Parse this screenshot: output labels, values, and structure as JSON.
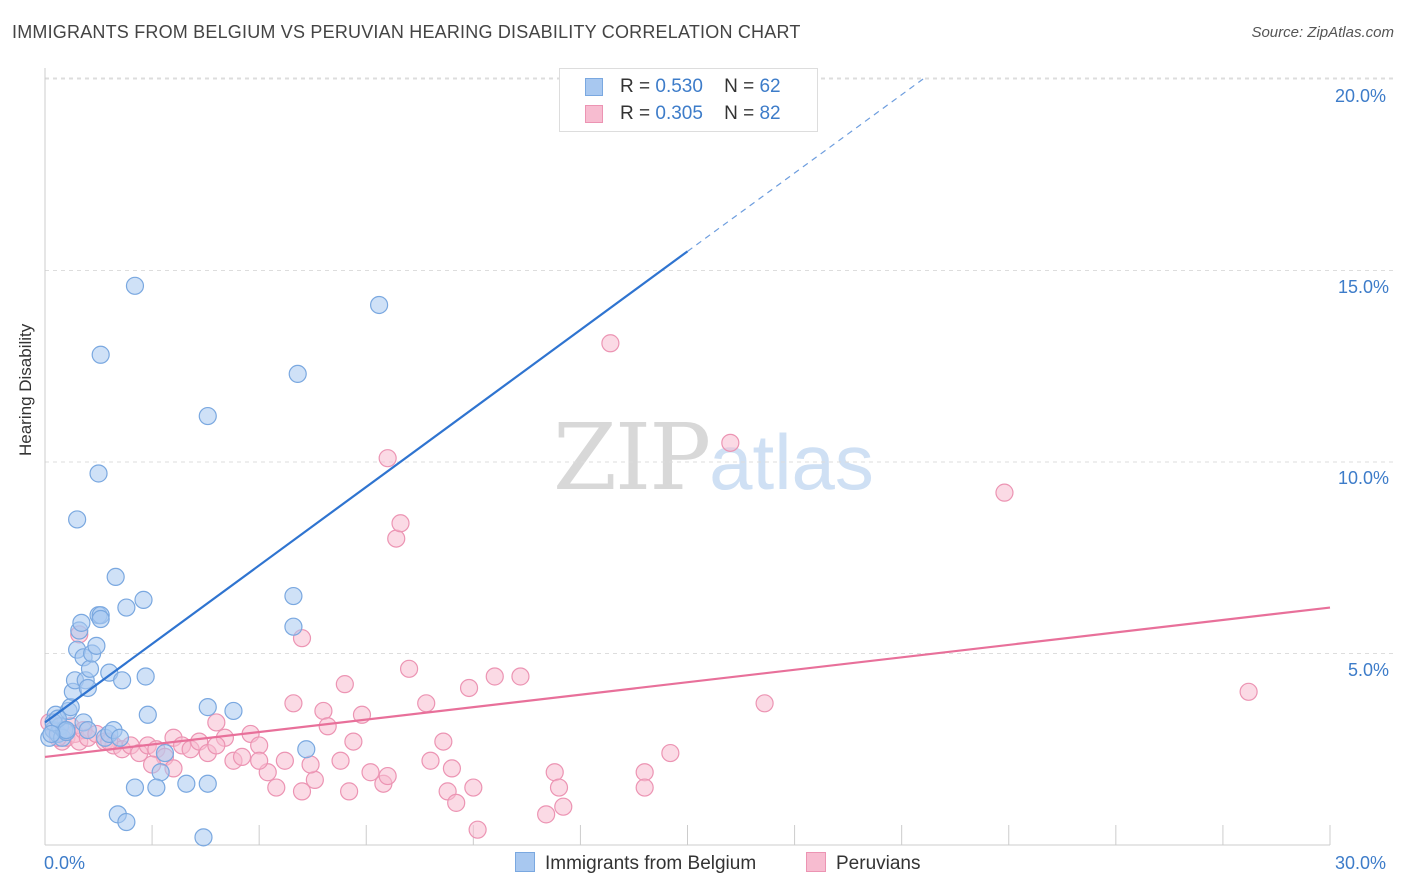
{
  "title": "IMMIGRANTS FROM BELGIUM VS PERUVIAN HEARING DISABILITY CORRELATION CHART",
  "source": "Source: ZipAtlas.com",
  "watermark": {
    "zip": "ZIP",
    "atlas": "atlas"
  },
  "legend": {
    "series": [
      {
        "r_label": "R =",
        "r_value": "0.530",
        "n_label": "N =",
        "n_value": "62"
      },
      {
        "r_label": "R =",
        "r_value": "0.305",
        "n_label": "N =",
        "n_value": "82"
      }
    ]
  },
  "bottom_legend": {
    "belgium": "Immigrants from Belgium",
    "peruvians": "Peruvians"
  },
  "colors": {
    "belgium_fill": "#a8c8f0",
    "belgium_stroke": "#7aa8e0",
    "belgium_line": "#2f74d0",
    "peru_fill": "#f7bcd0",
    "peru_stroke": "#ec94b3",
    "peru_line": "#e8709a",
    "tick_text": "#3d7cc9",
    "grid": "#dddddd"
  },
  "chart_data": {
    "type": "scatter",
    "title": "IMMIGRANTS FROM BELGIUM VS PERUVIAN HEARING DISABILITY CORRELATION CHART",
    "xlabel": "",
    "ylabel": "Hearing Disability",
    "xlim": [
      0,
      30
    ],
    "ylim": [
      0,
      20.5
    ],
    "x_tick_labels": [
      "0.0%",
      "30.0%"
    ],
    "y_ticks": [
      5,
      10,
      15,
      20
    ],
    "y_tick_labels": [
      "5.0%",
      "10.0%",
      "15.0%",
      "20.0%"
    ],
    "grid": true,
    "series": [
      {
        "name": "Immigrants from Belgium",
        "R": 0.53,
        "N": 62,
        "trend": {
          "x0": 0.0,
          "y0": 3.2,
          "x1": 15.0,
          "y1": 15.5,
          "dash_to_x": 20.5,
          "dash_to_y": 20.0
        },
        "points": [
          [
            0.1,
            2.8
          ],
          [
            0.2,
            3.0
          ],
          [
            0.25,
            3.4
          ],
          [
            0.3,
            2.9
          ],
          [
            0.35,
            3.1
          ],
          [
            0.4,
            2.8
          ],
          [
            0.45,
            3.0
          ],
          [
            0.5,
            2.95
          ],
          [
            0.55,
            3.5
          ],
          [
            0.6,
            3.6
          ],
          [
            0.65,
            4.0
          ],
          [
            0.7,
            4.3
          ],
          [
            0.75,
            5.1
          ],
          [
            0.8,
            5.6
          ],
          [
            0.85,
            5.8
          ],
          [
            0.9,
            4.9
          ],
          [
            0.95,
            4.3
          ],
          [
            1.0,
            4.1
          ],
          [
            1.05,
            4.6
          ],
          [
            1.1,
            5.0
          ],
          [
            1.2,
            5.2
          ],
          [
            1.25,
            6.0
          ],
          [
            1.3,
            6.0
          ],
          [
            0.9,
            3.2
          ],
          [
            1.0,
            3.0
          ],
          [
            1.4,
            2.8
          ],
          [
            1.5,
            2.9
          ],
          [
            1.6,
            3.0
          ],
          [
            1.5,
            4.5
          ],
          [
            1.8,
            4.3
          ],
          [
            1.9,
            6.2
          ],
          [
            2.3,
            6.4
          ],
          [
            2.35,
            4.4
          ],
          [
            2.4,
            3.4
          ],
          [
            2.1,
            14.6
          ],
          [
            1.3,
            12.8
          ],
          [
            1.25,
            9.7
          ],
          [
            0.75,
            8.5
          ],
          [
            1.65,
            7.0
          ],
          [
            1.3,
            5.9
          ],
          [
            1.7,
            0.8
          ],
          [
            1.9,
            0.6
          ],
          [
            2.1,
            1.5
          ],
          [
            2.7,
            1.9
          ],
          [
            2.8,
            2.4
          ],
          [
            3.3,
            1.6
          ],
          [
            3.8,
            1.6
          ],
          [
            3.8,
            3.6
          ],
          [
            4.4,
            3.5
          ],
          [
            3.8,
            11.2
          ],
          [
            3.7,
            0.2
          ],
          [
            5.9,
            12.3
          ],
          [
            5.8,
            6.5
          ],
          [
            5.8,
            5.7
          ],
          [
            6.1,
            2.5
          ],
          [
            7.8,
            14.1
          ],
          [
            2.6,
            1.5
          ],
          [
            0.2,
            3.2
          ],
          [
            0.3,
            3.3
          ],
          [
            1.75,
            2.8
          ],
          [
            0.5,
            3.0
          ],
          [
            0.15,
            2.9
          ]
        ]
      },
      {
        "name": "Peruvians",
        "R": 0.305,
        "N": 82,
        "trend": {
          "x0": 0.0,
          "y0": 2.3,
          "x1": 30.0,
          "y1": 6.2
        },
        "points": [
          [
            0.1,
            3.2
          ],
          [
            0.2,
            3.0
          ],
          [
            0.3,
            2.9
          ],
          [
            0.4,
            2.7
          ],
          [
            0.5,
            2.8
          ],
          [
            0.6,
            3.1
          ],
          [
            0.7,
            2.9
          ],
          [
            0.8,
            2.7
          ],
          [
            0.9,
            3.0
          ],
          [
            1.0,
            2.8
          ],
          [
            1.2,
            2.9
          ],
          [
            1.4,
            2.7
          ],
          [
            1.6,
            2.6
          ],
          [
            1.8,
            2.5
          ],
          [
            2.0,
            2.6
          ],
          [
            2.2,
            2.4
          ],
          [
            2.4,
            2.6
          ],
          [
            2.6,
            2.5
          ],
          [
            2.8,
            2.3
          ],
          [
            3.0,
            2.8
          ],
          [
            3.2,
            2.6
          ],
          [
            3.4,
            2.5
          ],
          [
            3.6,
            2.7
          ],
          [
            3.8,
            2.4
          ],
          [
            4.0,
            3.2
          ],
          [
            4.2,
            2.8
          ],
          [
            4.4,
            2.2
          ],
          [
            4.6,
            2.3
          ],
          [
            4.8,
            2.9
          ],
          [
            5.0,
            2.6
          ],
          [
            5.2,
            1.9
          ],
          [
            5.4,
            1.5
          ],
          [
            5.6,
            2.2
          ],
          [
            5.8,
            3.7
          ],
          [
            6.0,
            1.4
          ],
          [
            6.3,
            1.7
          ],
          [
            6.5,
            3.5
          ],
          [
            6.6,
            3.1
          ],
          [
            6.9,
            2.2
          ],
          [
            7.1,
            1.4
          ],
          [
            7.2,
            2.7
          ],
          [
            7.4,
            3.4
          ],
          [
            7.6,
            1.9
          ],
          [
            7.9,
            1.6
          ],
          [
            8.2,
            8.0
          ],
          [
            8.3,
            8.4
          ],
          [
            8.0,
            10.1
          ],
          [
            8.5,
            4.6
          ],
          [
            8.9,
            3.7
          ],
          [
            9.3,
            2.7
          ],
          [
            9.4,
            1.4
          ],
          [
            9.6,
            1.1
          ],
          [
            9.9,
            4.1
          ],
          [
            10.1,
            0.4
          ],
          [
            10.5,
            4.4
          ],
          [
            11.1,
            4.4
          ],
          [
            11.7,
            0.8
          ],
          [
            11.9,
            1.9
          ],
          [
            12.1,
            1.0
          ],
          [
            13.2,
            13.1
          ],
          [
            14.0,
            1.9
          ],
          [
            14.0,
            1.5
          ],
          [
            14.6,
            2.4
          ],
          [
            16.0,
            10.5
          ],
          [
            16.8,
            3.7
          ],
          [
            22.4,
            9.2
          ],
          [
            28.1,
            4.0
          ],
          [
            0.8,
            5.5
          ],
          [
            6.0,
            5.4
          ],
          [
            7.0,
            4.2
          ],
          [
            9.0,
            2.2
          ],
          [
            10.0,
            1.5
          ],
          [
            3.0,
            2.0
          ],
          [
            4.0,
            2.6
          ],
          [
            5.0,
            2.2
          ],
          [
            2.5,
            2.1
          ],
          [
            1.5,
            2.7
          ],
          [
            0.3,
            2.8
          ],
          [
            6.2,
            2.1
          ],
          [
            8.0,
            1.8
          ],
          [
            9.5,
            2.0
          ],
          [
            12.0,
            1.5
          ]
        ]
      }
    ]
  }
}
